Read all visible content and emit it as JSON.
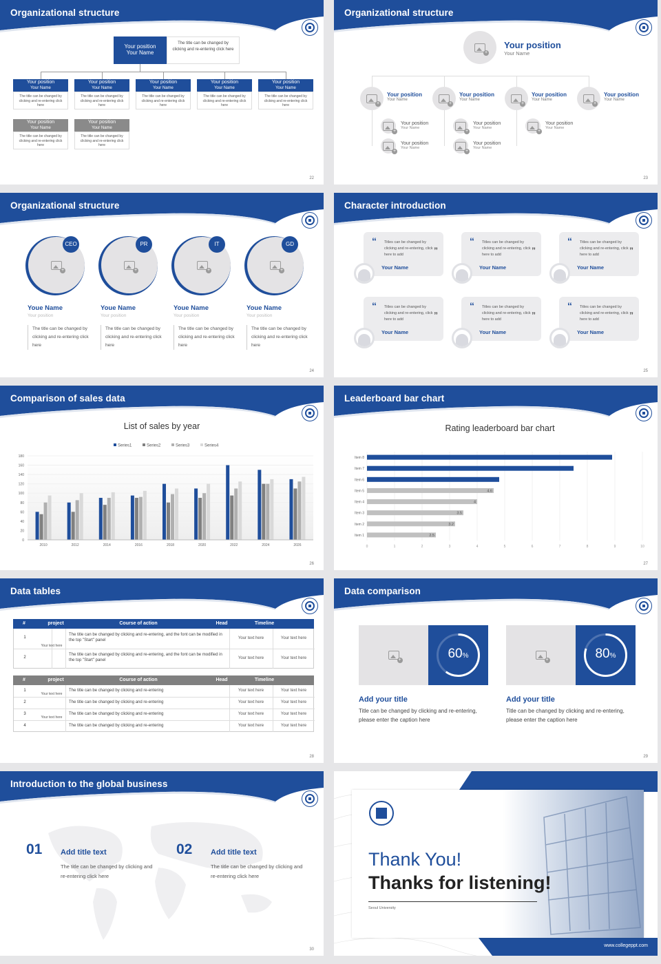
{
  "slides": [
    {
      "title": "Organizational structure",
      "page": "22",
      "top": {
        "position": "Your position",
        "name": "Your Name",
        "desc": "The title can be changed by clicking and re-entering click here"
      },
      "cards_blue": [
        {
          "position": "Your position",
          "name": "Your Name",
          "desc": "The title can be changed by clicking and re-entering click here"
        },
        {
          "position": "Your position",
          "name": "Your Name",
          "desc": "The title can be changed by clicking and re-entering click here"
        },
        {
          "position": "Your position",
          "name": "Your Name",
          "desc": "The title can be changed by clicking and re-entering click here"
        },
        {
          "position": "Your position",
          "name": "Your Name",
          "desc": "The title can be changed by clicking and re-entering click here"
        },
        {
          "position": "Your position",
          "name": "Your Name",
          "desc": "The title can be changed by clicking and re-entering click here"
        }
      ],
      "cards_gray": [
        {
          "position": "Your position",
          "name": "Your Name",
          "desc": "The title can be changed by clicking and re-entering click here"
        },
        {
          "position": "Your position",
          "name": "Your Name",
          "desc": "The title can be changed by clicking and re-entering click here"
        }
      ]
    },
    {
      "title": "Organizational structure",
      "page": "23",
      "top": {
        "position": "Your position",
        "name": "Your Name"
      },
      "level2": [
        {
          "position": "Your position",
          "name": "Your Name"
        },
        {
          "position": "Your position",
          "name": "Your Name"
        },
        {
          "position": "Your position",
          "name": "Your Name"
        },
        {
          "position": "Your position",
          "name": "Your Name"
        }
      ],
      "level3": [
        {
          "position": "Your position",
          "name": "Your Name"
        },
        {
          "position": "Your position",
          "name": "Your Name"
        },
        {
          "position": "Your position",
          "name": "Your Name"
        },
        {
          "position": "Your position",
          "name": "Your Name"
        },
        {
          "position": "Your position",
          "name": "Your Name"
        }
      ]
    },
    {
      "title": "Organizational structure",
      "page": "24",
      "people": [
        {
          "badge": "CEO",
          "name": "Youe Name",
          "position": "Your position",
          "desc": "The title can be changed by clicking and re-entering click here"
        },
        {
          "badge": "PR",
          "name": "Youe Name",
          "position": "Your position",
          "desc": "The title can be changed by clicking and re-entering click here"
        },
        {
          "badge": "IT",
          "name": "Youe Name",
          "position": "Your position",
          "desc": "The title can be changed by clicking and re-entering click here"
        },
        {
          "badge": "GD",
          "name": "Youe Name",
          "position": "Your position",
          "desc": "The title can be changed by clicking and re-entering click here"
        }
      ]
    },
    {
      "title": "Character introduction",
      "page": "25",
      "quote": "Titles can be changed by clicking and re-entering, click here to add",
      "name": "Your Name"
    },
    {
      "title": "Comparison of sales data",
      "page": "26"
    },
    {
      "title": "Leaderboard bar chart",
      "page": "27"
    },
    {
      "title": "Data tables",
      "page": "28",
      "table1": {
        "headers": [
          "#",
          "project",
          "Course of action",
          "Head",
          "Timeline"
        ],
        "group": "Your text here",
        "rows": [
          {
            "n": "1",
            "course": "The title can be changed by clicking and re-entering, and the font can be modified in the top \"Start\" panel",
            "head": "Your text here",
            "time": "Your text here"
          },
          {
            "n": "2",
            "course": "The title can be changed by clicking and re-entering, and the font can be modified in the top \"Start\" panel",
            "head": "Your text here",
            "time": "Your text here"
          }
        ]
      },
      "table2": {
        "headers": [
          "#",
          "project",
          "Course of action",
          "Head",
          "Timeline"
        ],
        "groups": [
          "Your text here",
          "Your text here"
        ],
        "rows": [
          {
            "n": "1",
            "course": "The title can be changed by clicking and re-entering",
            "head": "Your text here",
            "time": "Your text here"
          },
          {
            "n": "2",
            "course": "The title can be changed by clicking and re-entering",
            "head": "Your text here",
            "time": "Your text here"
          },
          {
            "n": "3",
            "course": "The title can be changed by clicking and re-entering",
            "head": "Your text here",
            "time": "Your text here"
          },
          {
            "n": "4",
            "course": "The title can be changed by clicking and re-entering",
            "head": "Your text here",
            "time": "Your text here"
          }
        ]
      }
    },
    {
      "title": "Data comparison",
      "page": "29",
      "items": [
        {
          "value": "60",
          "unit": "%",
          "progress": 0.6,
          "title": "Add your title",
          "desc": "Title can be changed by clicking and re-entering, please enter the caption here"
        },
        {
          "value": "80",
          "unit": "%",
          "progress": 0.8,
          "title": "Add your title",
          "desc": "Title can be changed by clicking and re-entering, please enter the caption here"
        }
      ]
    },
    {
      "title": "Introduction to the global business",
      "page": "30",
      "items": [
        {
          "num": "01",
          "title": "Add title text",
          "desc": "The title can be changed by clicking and re-entering click here"
        },
        {
          "num": "02",
          "title": "Add title text",
          "desc": "The title can be changed by clicking and re-entering click here"
        }
      ]
    },
    {
      "thanks1": "Thank You!",
      "thanks2": "Thanks for listening!",
      "university": "Seoul University",
      "url": "www.collegeppt.com"
    }
  ],
  "chart_data": [
    {
      "type": "bar",
      "title": "List of sales by year",
      "categories": [
        "2010",
        "2012",
        "2014",
        "2016",
        "2018",
        "2020",
        "2022",
        "2024",
        "2026"
      ],
      "series": [
        {
          "name": "Series1",
          "values": [
            60,
            80,
            90,
            95,
            120,
            110,
            160,
            150,
            130
          ]
        },
        {
          "name": "Series2",
          "values": [
            55,
            60,
            75,
            90,
            80,
            90,
            95,
            120,
            110
          ]
        },
        {
          "name": "Series3",
          "values": [
            80,
            85,
            90,
            92,
            98,
            100,
            110,
            120,
            125
          ]
        },
        {
          "name": "Series4",
          "values": [
            95,
            100,
            102,
            105,
            110,
            120,
            125,
            130,
            135
          ]
        }
      ],
      "ylim": [
        0,
        180
      ],
      "yticks": [
        0,
        20,
        40,
        60,
        80,
        100,
        120,
        140,
        160,
        180
      ],
      "legend": "top",
      "colors": [
        "#1f4e9b",
        "#808080",
        "#b0b0b0",
        "#d9d9d9"
      ]
    },
    {
      "type": "bar",
      "orientation": "horizontal",
      "title": "Rating leaderboard bar chart",
      "categories": [
        "Item 1",
        "Item 2",
        "Item 3",
        "Item 4",
        "Item 5",
        "Item 6",
        "Item 7",
        "Item 8"
      ],
      "values": [
        2.5,
        3.2,
        3.5,
        4,
        4.6,
        4.8,
        7.5,
        8.9
      ],
      "labels": [
        "2.5",
        "3.2",
        "3.5",
        "4",
        "4.6",
        "",
        "",
        ""
      ],
      "colors": [
        "#c0c0c0",
        "#c0c0c0",
        "#c0c0c0",
        "#c0c0c0",
        "#c0c0c0",
        "#1f4e9b",
        "#1f4e9b",
        "#1f4e9b"
      ],
      "xlim": [
        0,
        10
      ],
      "xticks": [
        0,
        1,
        2,
        3,
        4,
        5,
        6,
        7,
        8,
        9,
        10
      ]
    }
  ]
}
